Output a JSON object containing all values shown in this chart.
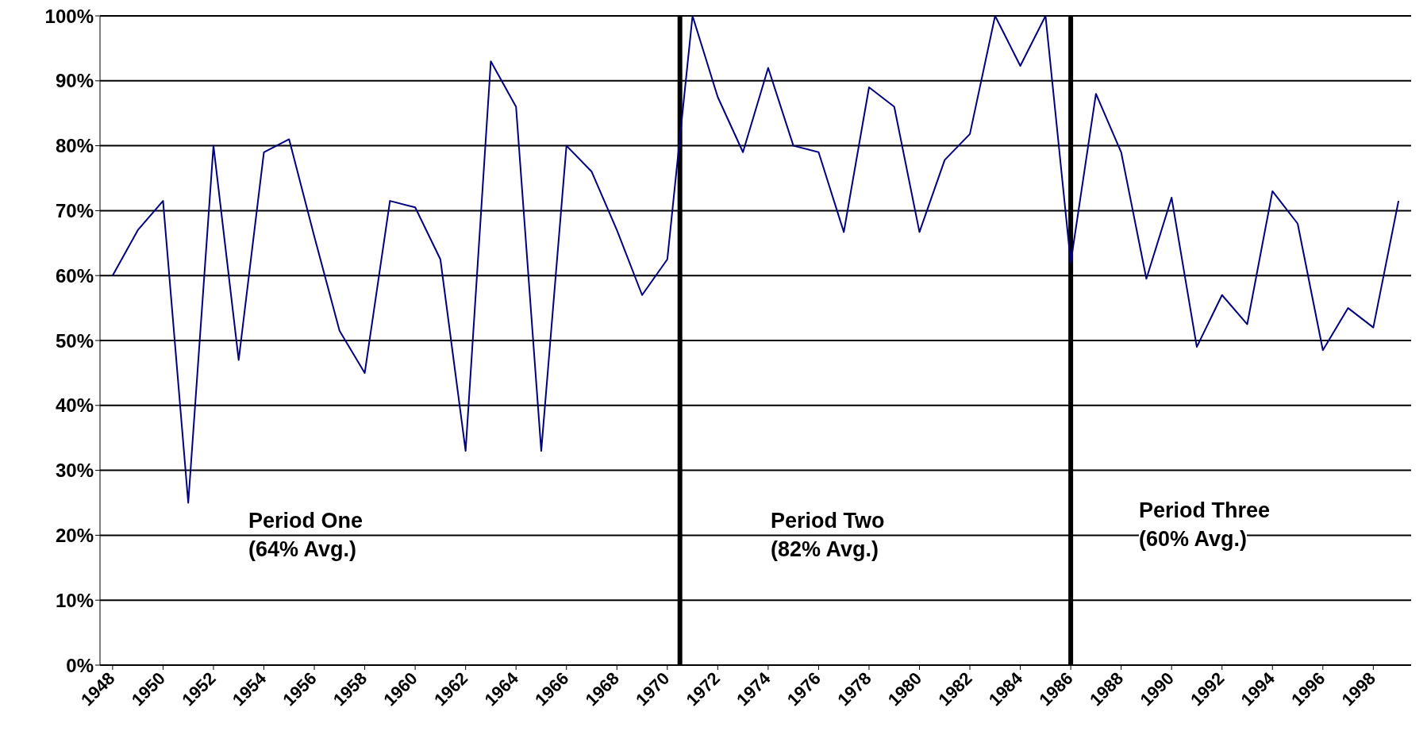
{
  "chart_data": {
    "type": "line",
    "x": [
      1948,
      1949,
      1950,
      1951,
      1952,
      1953,
      1954,
      1955,
      1956,
      1957,
      1958,
      1959,
      1960,
      1961,
      1962,
      1963,
      1964,
      1965,
      1966,
      1967,
      1968,
      1969,
      1970,
      1971,
      1972,
      1973,
      1974,
      1975,
      1976,
      1977,
      1978,
      1979,
      1980,
      1981,
      1982,
      1983,
      1984,
      1985,
      1986,
      1987,
      1988,
      1989,
      1990,
      1991,
      1992,
      1993,
      1994,
      1995,
      1996,
      1997,
      1998,
      1999
    ],
    "values": [
      60,
      67,
      71.5,
      25,
      80,
      47,
      79,
      81,
      66,
      51.5,
      45,
      71.5,
      70.5,
      62.5,
      33,
      93,
      86,
      33,
      80,
      76,
      67,
      57,
      62.5,
      100,
      87.5,
      79,
      92,
      80,
      79,
      66.7,
      89,
      86,
      66.7,
      77.8,
      81.8,
      100,
      92.3,
      100,
      62,
      88,
      79,
      59.5,
      72,
      49,
      57,
      52.5,
      73,
      68,
      48.5,
      55,
      52,
      71.5
    ],
    "color": "#000080",
    "xlim": [
      1947.5,
      1999.5
    ],
    "xticks": [
      1948,
      1950,
      1952,
      1954,
      1956,
      1958,
      1960,
      1962,
      1964,
      1966,
      1968,
      1970,
      1972,
      1974,
      1976,
      1978,
      1980,
      1982,
      1984,
      1986,
      1988,
      1990,
      1992,
      1994,
      1996,
      1998
    ],
    "ylim": [
      0,
      100
    ],
    "yticks": [
      {
        "value": 0,
        "label": "0%"
      },
      {
        "value": 10,
        "label": "10%"
      },
      {
        "value": 20,
        "label": "20%"
      },
      {
        "value": 30,
        "label": "30%"
      },
      {
        "value": 40,
        "label": "40%"
      },
      {
        "value": 50,
        "label": "50%"
      },
      {
        "value": 60,
        "label": "60%"
      },
      {
        "value": 70,
        "label": "70%"
      },
      {
        "value": 80,
        "label": "80%"
      },
      {
        "value": 90,
        "label": "90%"
      },
      {
        "value": 100,
        "label": "100%"
      }
    ],
    "grid": "y",
    "marker": "none",
    "line_style": "solid",
    "ref_lines": [
      {
        "axis": "x",
        "value": 1970.5,
        "color": "#000000"
      },
      {
        "axis": "x",
        "value": 1986,
        "color": "#000000"
      }
    ],
    "annotations": [
      "Period One\n(64% Avg.)",
      "Period Two\n(82% Avg.)",
      "Period Three\n(60% Avg.)"
    ]
  }
}
